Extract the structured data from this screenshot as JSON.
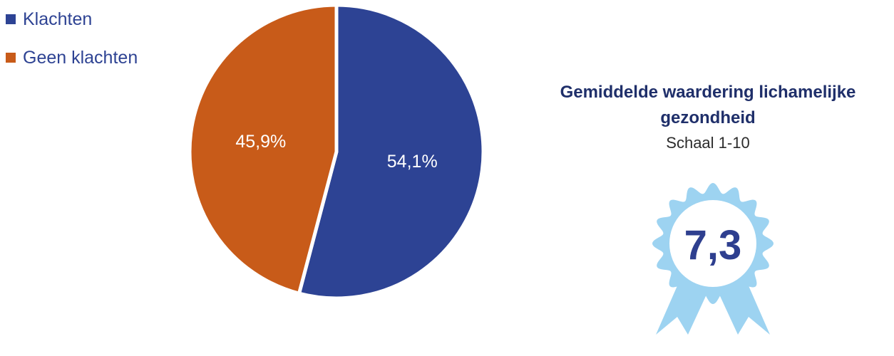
{
  "chart_data": {
    "type": "pie",
    "categories": [
      "Klachten",
      "Geen klachten"
    ],
    "values": [
      54.1,
      45.9
    ],
    "value_labels": [
      "54,1%",
      "45,9%"
    ],
    "colors": [
      "#2d4394",
      "#c85b19"
    ],
    "legend_position": "top-left",
    "start_angle": "12 o'clock",
    "direction": "clockwise"
  },
  "score": {
    "title": "Gemiddelde waardering lichamelijke gezondheid",
    "subtitle": "Schaal 1-10",
    "value": "7,3",
    "rosette_color": "#9dd3f1",
    "value_color": "#2e3f8f"
  }
}
